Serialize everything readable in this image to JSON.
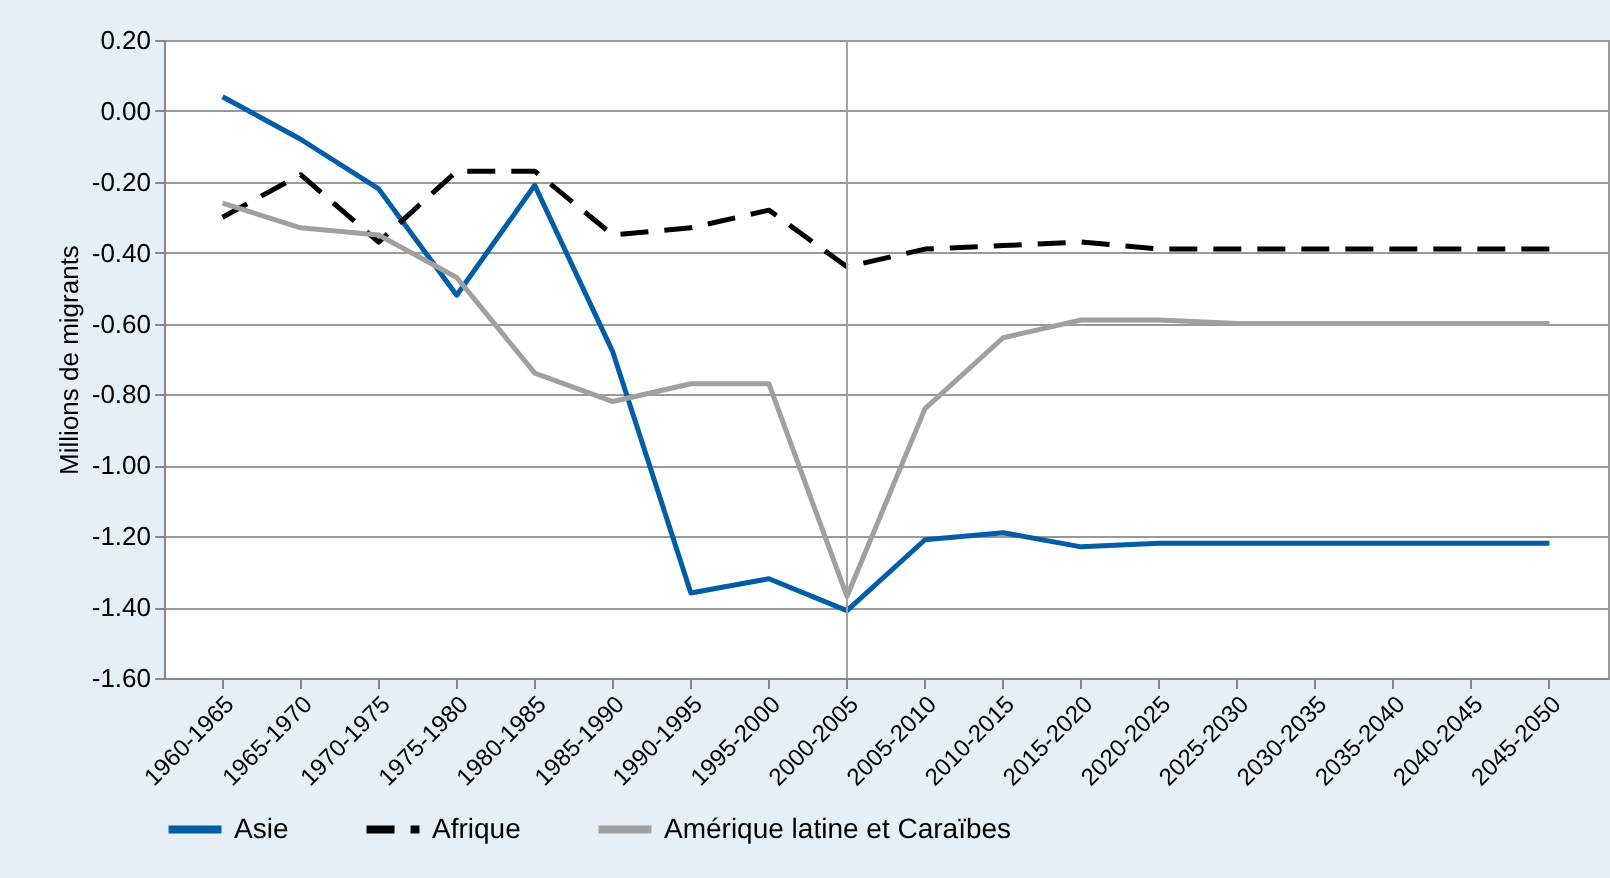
{
  "chart_data": {
    "type": "line",
    "ylabel": "Millions de migrants",
    "categories": [
      "1960-1965",
      "1965-1970",
      "1970-1975",
      "1975-1980",
      "1980-1985",
      "1985-1990",
      "1990-1995",
      "1995-2000",
      "2000-2005",
      "2005-2010",
      "2010-2015",
      "2015-2020",
      "2020-2025",
      "2025-2030",
      "2030-2035",
      "2035-2040",
      "2040-2045",
      "2045-2050"
    ],
    "series": [
      {
        "name": "Asie",
        "color": "#005da6",
        "line_style": "solid",
        "values": [
          0.04,
          -0.08,
          -0.22,
          -0.52,
          -0.21,
          -0.68,
          -1.36,
          -1.32,
          -1.41,
          -1.21,
          -1.19,
          -1.23,
          -1.22,
          -1.22,
          -1.22,
          -1.22,
          -1.22,
          -1.22
        ]
      },
      {
        "name": "Afrique",
        "color": "#000000",
        "line_style": "dashed",
        "values": [
          -0.3,
          -0.18,
          -0.37,
          -0.17,
          -0.17,
          -0.35,
          -0.33,
          -0.28,
          -0.44,
          -0.39,
          -0.38,
          -0.37,
          -0.39,
          -0.39,
          -0.39,
          -0.39,
          -0.39,
          -0.39
        ]
      },
      {
        "name": "Amérique latine et Caraïbes",
        "color": "#a0a0a0",
        "line_style": "solid",
        "values": [
          -0.26,
          -0.33,
          -0.35,
          -0.47,
          -0.74,
          -0.82,
          -0.77,
          -0.77,
          -1.37,
          -0.84,
          -0.64,
          -0.59,
          -0.59,
          -0.6,
          -0.6,
          -0.6,
          -0.6,
          -0.6
        ]
      }
    ],
    "ylim": [
      -1.6,
      0.2
    ],
    "yticks": [
      {
        "value": 0.2,
        "label": "0.20"
      },
      {
        "value": 0,
        "label": "0.00"
      },
      {
        "value": -0.2,
        "label": "-0.20"
      },
      {
        "value": -0.4,
        "label": "-0.40"
      },
      {
        "value": -0.6,
        "label": "-0.60"
      },
      {
        "value": -0.8,
        "label": "-0.80"
      },
      {
        "value": -1,
        "label": "-1.00"
      },
      {
        "value": -1.2,
        "label": "-1.20"
      },
      {
        "value": -1.4,
        "label": "-1.40"
      },
      {
        "value": -1.6,
        "label": "-1.60"
      }
    ],
    "ref_lines": [
      {
        "axis": "x",
        "value": "2000-2005",
        "color": "#a0a0a0"
      }
    ],
    "grid": "y",
    "legend": "bottom"
  }
}
